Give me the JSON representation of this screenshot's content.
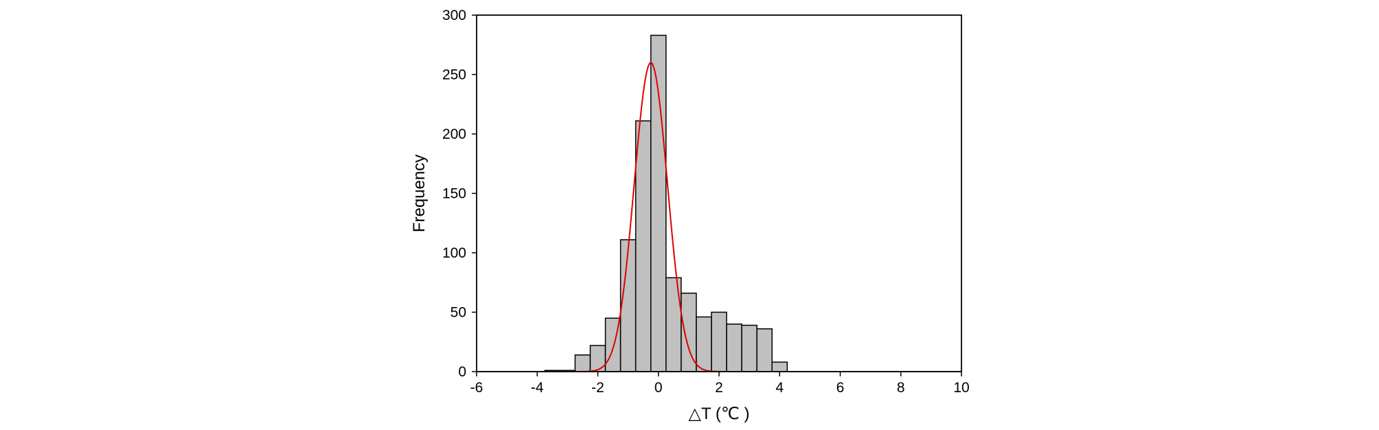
{
  "chart_data": {
    "type": "bar",
    "subtype": "histogram",
    "xlabel": "△T (℃ )",
    "ylabel": "Frequency",
    "xlim": [
      -6,
      10
    ],
    "ylim": [
      0,
      300
    ],
    "xticks": [
      -6,
      -4,
      -2,
      0,
      2,
      4,
      6,
      8,
      10
    ],
    "yticks": [
      0,
      50,
      100,
      150,
      200,
      250,
      300
    ],
    "grid": false,
    "bin_width": 0.5,
    "bins": [
      {
        "x0": -3.75,
        "x1": -3.25,
        "value": 1
      },
      {
        "x0": -3.25,
        "x1": -2.75,
        "value": 1
      },
      {
        "x0": -2.75,
        "x1": -2.25,
        "value": 14
      },
      {
        "x0": -2.25,
        "x1": -1.75,
        "value": 22
      },
      {
        "x0": -1.75,
        "x1": -1.25,
        "value": 45
      },
      {
        "x0": -1.25,
        "x1": -0.75,
        "value": 111
      },
      {
        "x0": -0.75,
        "x1": -0.25,
        "value": 211
      },
      {
        "x0": -0.25,
        "x1": 0.25,
        "value": 283
      },
      {
        "x0": 0.25,
        "x1": 0.75,
        "value": 79
      },
      {
        "x0": 0.75,
        "x1": 1.25,
        "value": 66
      },
      {
        "x0": 1.25,
        "x1": 1.75,
        "value": 46
      },
      {
        "x0": 1.75,
        "x1": 2.25,
        "value": 50
      },
      {
        "x0": 2.25,
        "x1": 2.75,
        "value": 40
      },
      {
        "x0": 2.75,
        "x1": 3.25,
        "value": 39
      },
      {
        "x0": 3.25,
        "x1": 3.75,
        "value": 36
      },
      {
        "x0": 3.75,
        "x1": 4.25,
        "value": 8
      }
    ],
    "fit_curve": {
      "type": "gaussian",
      "peak_x": -0.25,
      "peak_y": 260,
      "sigma": 0.55,
      "x_range": [
        -6,
        10
      ],
      "color": "#e00000"
    },
    "bar_color": "#c0c0c0"
  }
}
